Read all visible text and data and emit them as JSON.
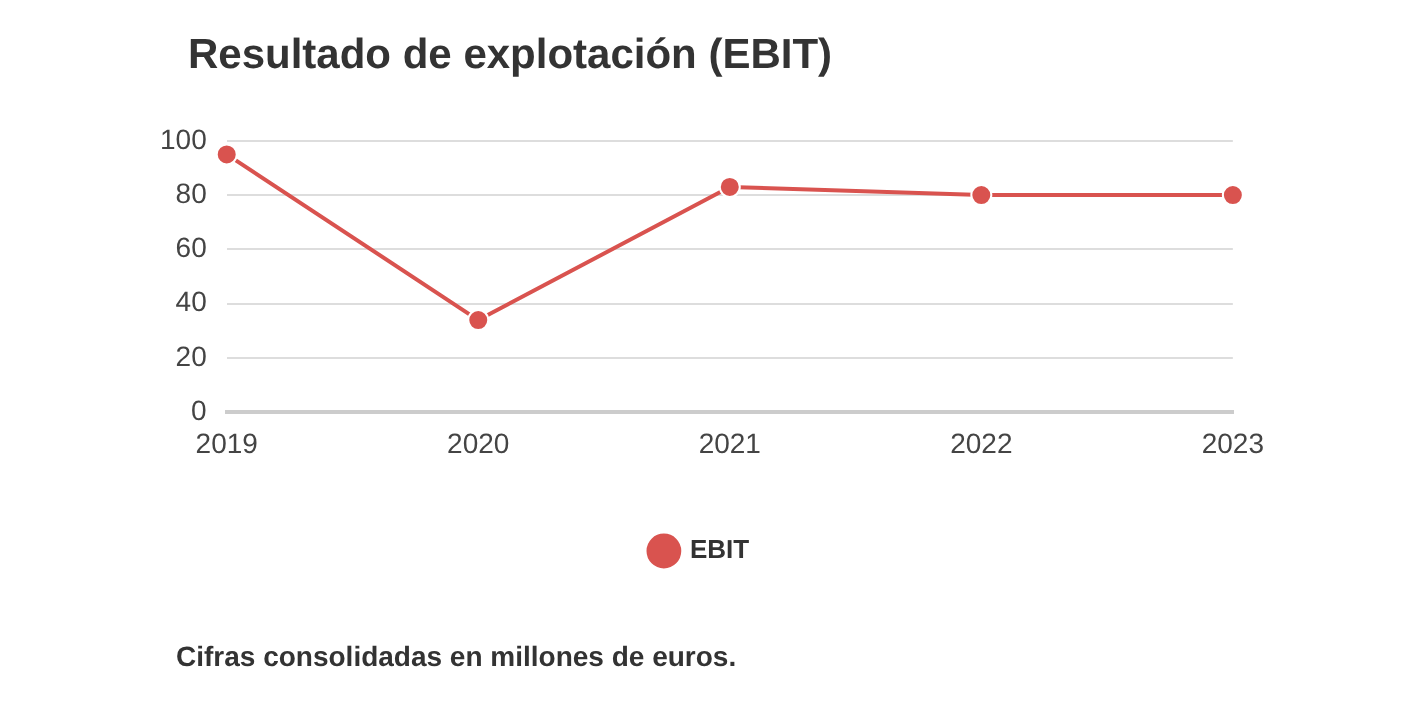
{
  "chart_data": {
    "type": "line",
    "title": "Resultado de explotación (EBIT)",
    "categories": [
      "2019",
      "2020",
      "2021",
      "2022",
      "2023"
    ],
    "series": [
      {
        "name": "EBIT",
        "color": "#d9534f",
        "values": [
          95,
          34,
          83,
          80,
          80
        ]
      }
    ],
    "ylim": [
      0,
      100
    ],
    "yticks": [
      0,
      20,
      40,
      60,
      80,
      100
    ],
    "grid": "y",
    "legend": "bottom",
    "marker": "circle",
    "line_style": "solid",
    "annotations": [
      "Cifras consolidadas en millones de euros."
    ]
  }
}
